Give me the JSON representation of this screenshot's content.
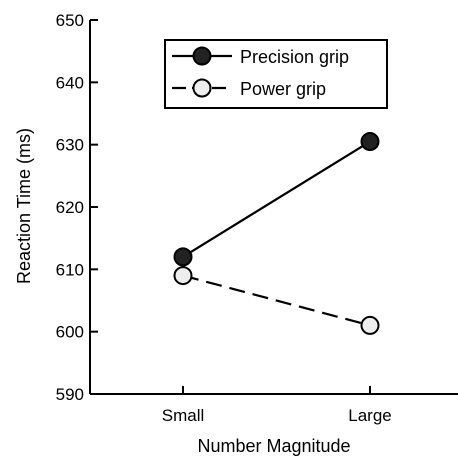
{
  "chart_data": {
    "type": "line",
    "title": "",
    "xlabel": "Number Magnitude",
    "ylabel": "Reaction Time (ms)",
    "categories": [
      "Small",
      "Large"
    ],
    "ylim": [
      590,
      650
    ],
    "yticks": [
      590,
      600,
      610,
      620,
      630,
      640,
      650
    ],
    "grid": false,
    "legend_position": "top",
    "series": [
      {
        "name": "Precision grip",
        "values": [
          612,
          630.5
        ],
        "line_style": "solid",
        "marker_fill": "#222222"
      },
      {
        "name": "Power grip",
        "values": [
          609,
          601
        ],
        "line_style": "dashed",
        "marker_fill": "#eeeeee"
      }
    ]
  }
}
